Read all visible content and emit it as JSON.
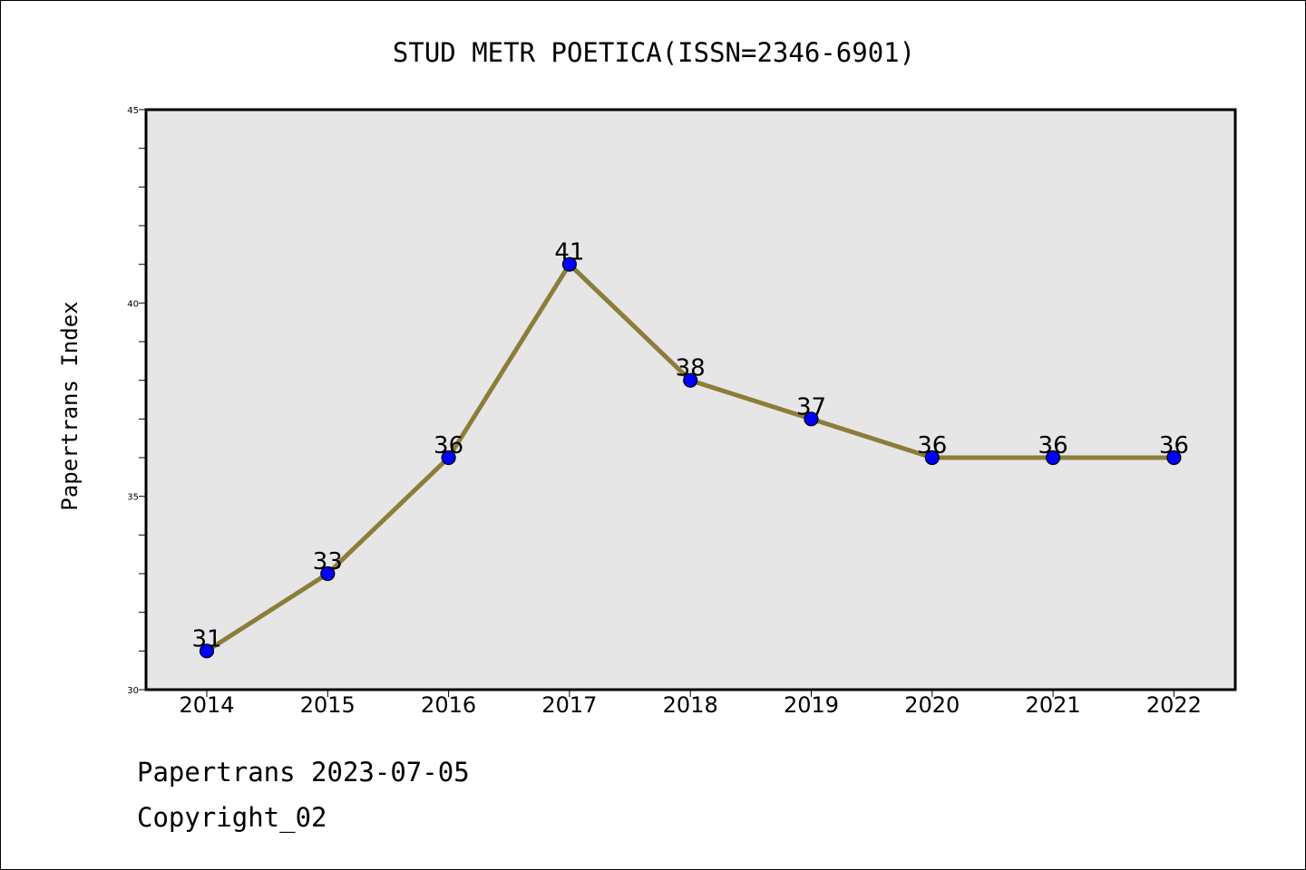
{
  "chart_data": {
    "type": "line",
    "title": "STUD METR POETICA(ISSN=2346-6901)",
    "xlabel": "",
    "ylabel": "Papertrans Index",
    "categories": [
      "2014",
      "2015",
      "2016",
      "2017",
      "2018",
      "2019",
      "2020",
      "2021",
      "2022"
    ],
    "series": [
      {
        "values": [
          31,
          33,
          36,
          41,
          38,
          37,
          36,
          36,
          36
        ],
        "data_labels": [
          "31",
          "33",
          "36",
          "41",
          "38",
          "37",
          "36",
          "36",
          "36"
        ]
      }
    ],
    "ylim": [
      30,
      45
    ],
    "yticks": [
      30,
      35,
      40,
      45
    ],
    "ytick_labels": [
      "30",
      "35",
      "40",
      "45"
    ],
    "y_minor_step": 1,
    "grid": false,
    "colors": {
      "plot_background": "#e6e6e6",
      "line": "#8b7d3a",
      "marker": "#0000ff"
    }
  },
  "footer": {
    "date_line": "Papertrans 2023-07-05",
    "copyright_line": "Copyright_02"
  }
}
